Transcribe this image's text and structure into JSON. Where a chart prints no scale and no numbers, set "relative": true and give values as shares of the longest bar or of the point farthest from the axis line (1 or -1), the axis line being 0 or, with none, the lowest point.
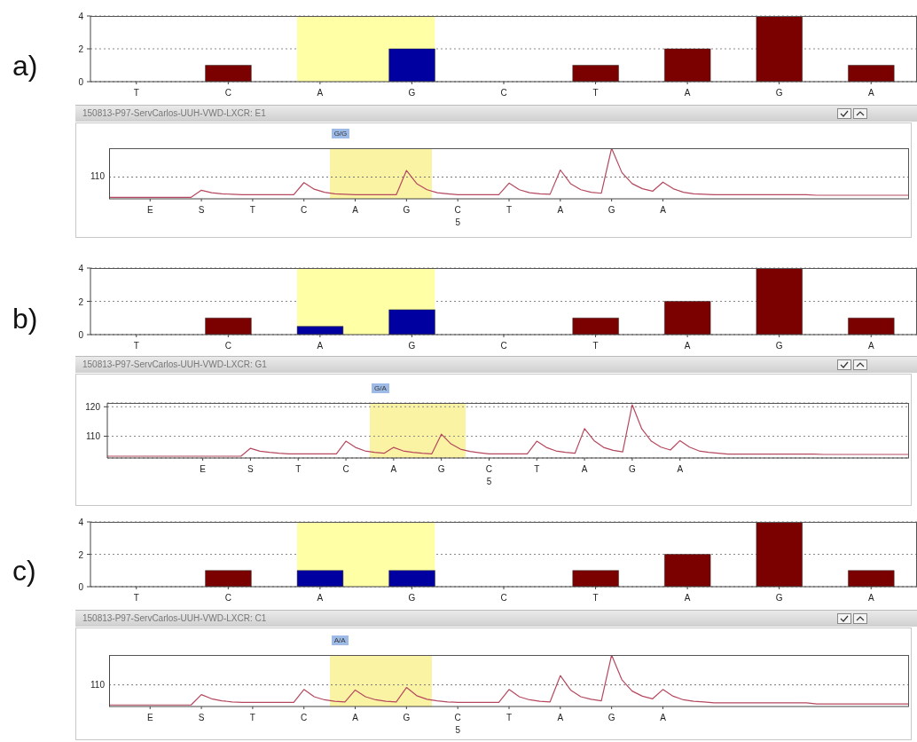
{
  "chart_data": [
    {
      "type": "bar",
      "annotations": [
        "a)"
      ],
      "categories": [
        "T",
        "C",
        "A",
        "G",
        "C",
        "T",
        "A",
        "G",
        "A"
      ],
      "ylim": [
        0,
        4
      ],
      "yticks": [
        0,
        2,
        4
      ],
      "grid": "y",
      "values": [
        0,
        1,
        0,
        2,
        0,
        1,
        2,
        4,
        1
      ],
      "colors": [
        "#7b0000",
        "#7b0000",
        "#0000a0",
        "#0000a0",
        "#7b0000",
        "#7b0000",
        "#7b0000",
        "#7b0000",
        "#7b0000"
      ],
      "bands": [
        {
          "axis": "x",
          "from": "A",
          "to": "G",
          "color": "#ffffa6"
        }
      ]
    },
    {
      "type": "line",
      "title": "150813-P97-ServCarlos-UUH-VWD-LXCR: E1",
      "relative": true,
      "categories": [
        null,
        null,
        null,
        null,
        "E",
        null,
        null,
        null,
        null,
        "S",
        null,
        null,
        null,
        null,
        "T",
        null,
        null,
        null,
        null,
        "C",
        null,
        null,
        null,
        null,
        "A",
        null,
        null,
        null,
        null,
        "G",
        null,
        null,
        null,
        null,
        "C\n5",
        null,
        null,
        null,
        null,
        "T",
        null,
        null,
        null,
        null,
        "A",
        null,
        null,
        null,
        null,
        "G",
        null,
        null,
        null,
        null,
        "A",
        null,
        null,
        null,
        null,
        null,
        null,
        null,
        null,
        null,
        null,
        null,
        null,
        null,
        null,
        null,
        null,
        null,
        null,
        null,
        null,
        null,
        null,
        null,
        null
      ],
      "ref_lines": [
        {
          "axis": "y",
          "value": 0.43,
          "line_style": "dotted"
        }
      ],
      "annotations": [
        "110",
        "G/G"
      ],
      "series": [
        {
          "color": "#b5485e",
          "values": [
            0.03,
            0.03,
            0.03,
            0.03,
            0.03,
            0.03,
            0.03,
            0.03,
            0.03,
            0.17,
            0.12,
            0.1,
            0.09,
            0.08,
            0.08,
            0.08,
            0.08,
            0.08,
            0.08,
            0.32,
            0.19,
            0.13,
            0.1,
            0.09,
            0.08,
            0.08,
            0.08,
            0.08,
            0.08,
            0.56,
            0.3,
            0.18,
            0.12,
            0.1,
            0.08,
            0.08,
            0.08,
            0.08,
            0.08,
            0.31,
            0.18,
            0.12,
            0.1,
            0.09,
            0.57,
            0.3,
            0.18,
            0.13,
            0.11,
            1.0,
            0.52,
            0.3,
            0.2,
            0.15,
            0.33,
            0.2,
            0.13,
            0.1,
            0.09,
            0.08,
            0.08,
            0.08,
            0.08,
            0.08,
            0.08,
            0.08,
            0.08,
            0.08,
            0.08,
            0.07,
            0.07,
            0.07,
            0.07,
            0.07,
            0.07,
            0.07,
            0.07,
            0.07,
            0.07
          ]
        }
      ]
    },
    {
      "type": "bar",
      "annotations": [
        "b)"
      ],
      "categories": [
        "T",
        "C",
        "A",
        "G",
        "C",
        "T",
        "A",
        "G",
        "A"
      ],
      "ylim": [
        0,
        4
      ],
      "yticks": [
        0,
        2,
        4
      ],
      "grid": "y",
      "values": [
        0,
        1,
        0.5,
        1.5,
        0,
        1,
        2,
        4,
        1
      ],
      "colors": [
        "#7b0000",
        "#7b0000",
        "#0000a0",
        "#0000a0",
        "#7b0000",
        "#7b0000",
        "#7b0000",
        "#7b0000",
        "#7b0000"
      ],
      "bands": [
        {
          "axis": "x",
          "from": "A",
          "to": "G",
          "color": "#ffffa6"
        }
      ]
    },
    {
      "type": "line",
      "title": "150813-P97-ServCarlos-UUH-VWD-LXCR: G1",
      "categories": [
        null,
        null,
        null,
        null,
        null,
        null,
        null,
        null,
        null,
        null,
        "E",
        null,
        null,
        null,
        null,
        "S",
        null,
        null,
        null,
        null,
        "T",
        null,
        null,
        null,
        null,
        "C",
        null,
        null,
        null,
        null,
        "A",
        null,
        null,
        null,
        null,
        "G",
        null,
        null,
        null,
        null,
        "C\n5",
        null,
        null,
        null,
        null,
        "T",
        null,
        null,
        null,
        null,
        "A",
        null,
        null,
        null,
        null,
        "G",
        null,
        null,
        null,
        null,
        "A",
        null,
        null,
        null,
        null,
        null,
        null,
        null,
        null,
        null,
        null,
        null,
        null,
        null,
        null,
        null,
        null,
        null,
        null,
        null,
        null,
        null,
        null,
        null,
        null
      ],
      "ylim": [
        102.6,
        121.3
      ],
      "yticks": [
        110,
        120
      ],
      "grid": "y",
      "annotations": [
        "G/A"
      ],
      "series": [
        {
          "color": "#b5485e",
          "values": [
            103.2,
            103.2,
            103.2,
            103.2,
            103.2,
            103.2,
            103.2,
            103.2,
            103.2,
            103.2,
            103.2,
            103.2,
            103.2,
            103.2,
            103.2,
            105.9,
            104.9,
            104.5,
            104.2,
            104.0,
            104.0,
            104.0,
            104.0,
            104.0,
            104.0,
            108.3,
            106.2,
            105.0,
            104.5,
            104.2,
            106.2,
            105.0,
            104.5,
            104.2,
            104.0,
            110.7,
            107.4,
            105.6,
            104.8,
            104.4,
            104.0,
            104.0,
            104.0,
            104.0,
            104.0,
            108.3,
            106.2,
            105.0,
            104.5,
            104.2,
            112.6,
            108.5,
            106.2,
            105.2,
            104.7,
            120.7,
            112.5,
            108.3,
            106.3,
            105.3,
            108.5,
            106.3,
            105.0,
            104.5,
            104.2,
            103.9,
            103.9,
            103.9,
            103.9,
            103.9,
            103.9,
            103.9,
            103.9,
            103.9,
            103.9,
            103.8,
            103.8,
            103.8,
            103.8,
            103.8,
            103.8,
            103.8,
            103.8,
            103.8,
            103.8
          ]
        }
      ]
    },
    {
      "type": "bar",
      "annotations": [
        "c)"
      ],
      "categories": [
        "T",
        "C",
        "A",
        "G",
        "C",
        "T",
        "A",
        "G",
        "A"
      ],
      "ylim": [
        0,
        4
      ],
      "yticks": [
        0,
        2,
        4
      ],
      "grid": "y",
      "values": [
        0,
        1,
        1,
        1,
        0,
        1,
        2,
        4,
        1
      ],
      "colors": [
        "#7b0000",
        "#7b0000",
        "#0000a0",
        "#0000a0",
        "#7b0000",
        "#7b0000",
        "#7b0000",
        "#7b0000",
        "#7b0000"
      ],
      "bands": [
        {
          "axis": "x",
          "from": "A",
          "to": "G",
          "color": "#ffffa6"
        }
      ]
    },
    {
      "type": "line",
      "title": "150813-P97-ServCarlos-UUH-VWD-LXCR: C1",
      "relative": true,
      "categories": [
        null,
        null,
        null,
        null,
        "E",
        null,
        null,
        null,
        null,
        "S",
        null,
        null,
        null,
        null,
        "T",
        null,
        null,
        null,
        null,
        "C",
        null,
        null,
        null,
        null,
        "A",
        null,
        null,
        null,
        null,
        "G",
        null,
        null,
        null,
        null,
        "C\n5",
        null,
        null,
        null,
        null,
        "T",
        null,
        null,
        null,
        null,
        "A",
        null,
        null,
        null,
        null,
        "G",
        null,
        null,
        null,
        null,
        "A",
        null,
        null,
        null,
        null,
        null,
        null,
        null,
        null,
        null,
        null,
        null,
        null,
        null,
        null,
        null,
        null,
        null,
        null,
        null,
        null,
        null,
        null,
        null,
        null
      ],
      "ref_lines": [
        {
          "axis": "y",
          "value": 0.42,
          "line_style": "dotted"
        }
      ],
      "annotations": [
        "110",
        "A/A"
      ],
      "series": [
        {
          "color": "#b5485e",
          "values": [
            0.03,
            0.03,
            0.03,
            0.03,
            0.03,
            0.03,
            0.03,
            0.03,
            0.03,
            0.23,
            0.15,
            0.11,
            0.09,
            0.08,
            0.08,
            0.08,
            0.08,
            0.08,
            0.08,
            0.33,
            0.19,
            0.13,
            0.1,
            0.09,
            0.32,
            0.19,
            0.13,
            0.1,
            0.09,
            0.37,
            0.21,
            0.14,
            0.11,
            0.09,
            0.08,
            0.08,
            0.08,
            0.08,
            0.08,
            0.33,
            0.19,
            0.13,
            0.1,
            0.09,
            0.6,
            0.32,
            0.19,
            0.14,
            0.11,
            1.0,
            0.52,
            0.3,
            0.2,
            0.15,
            0.33,
            0.2,
            0.13,
            0.1,
            0.09,
            0.07,
            0.07,
            0.07,
            0.07,
            0.07,
            0.07,
            0.07,
            0.07,
            0.07,
            0.07,
            0.05,
            0.05,
            0.05,
            0.05,
            0.05,
            0.05,
            0.05,
            0.05,
            0.05,
            0.05
          ]
        }
      ]
    }
  ]
}
